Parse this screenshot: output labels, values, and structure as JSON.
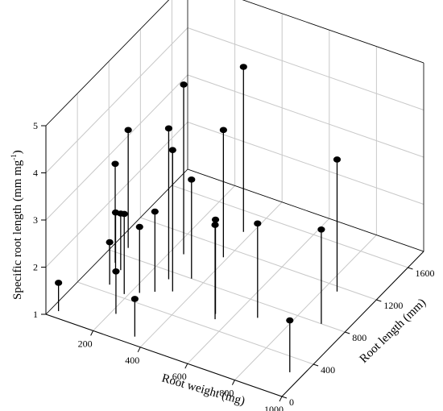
{
  "chart_data": {
    "type": "scatter",
    "subtype": "3d-scatter-with-drop-lines",
    "xlabel": "Root weight (mg)",
    "ylabel": "Root length (mm)",
    "zlabel_main": "Specific root length (mm mg",
    "zlabel_sup": "-1",
    "zlabel_close": ")",
    "xlim": [
      0,
      1000
    ],
    "ylim": [
      0,
      1800
    ],
    "zlim": [
      1,
      5
    ],
    "xticks": [
      200,
      400,
      600,
      800,
      1000
    ],
    "yticks": [
      0,
      400,
      800,
      1200,
      1600
    ],
    "zticks": [
      1,
      2,
      3,
      4,
      5
    ],
    "grid": true,
    "marker_color": "#000000",
    "points": [
      {
        "x": 60,
        "y": 700,
        "z": 3.1
      },
      {
        "x": 55,
        "y": 880,
        "z": 3.5
      },
      {
        "x": 95,
        "y": 600,
        "z": 2.3
      },
      {
        "x": 100,
        "y": 650,
        "z": 2.2
      },
      {
        "x": 110,
        "y": 480,
        "z": 1.9
      },
      {
        "x": 30,
        "y": 70,
        "z": 1.6
      },
      {
        "x": 185,
        "y": 440,
        "z": 2.7
      },
      {
        "x": 220,
        "y": 230,
        "z": 1.9
      },
      {
        "x": 230,
        "y": 500,
        "z": 2.4
      },
      {
        "x": 275,
        "y": 560,
        "z": 2.7
      },
      {
        "x": 250,
        "y": 1000,
        "z": 4.6
      },
      {
        "x": 280,
        "y": 720,
        "z": 4.2
      },
      {
        "x": 350,
        "y": 80,
        "z": 1.8
      },
      {
        "x": 350,
        "y": 800,
        "z": 3.1
      },
      {
        "x": 330,
        "y": 620,
        "z": 4.0
      },
      {
        "x": 370,
        "y": 1400,
        "z": 4.5
      },
      {
        "x": 385,
        "y": 1100,
        "z": 3.7
      },
      {
        "x": 535,
        "y": 550,
        "z": 3.0
      },
      {
        "x": 550,
        "y": 500,
        "z": 3.0
      },
      {
        "x": 680,
        "y": 650,
        "z": 3.0
      },
      {
        "x": 850,
        "y": 1150,
        "z": 3.8
      },
      {
        "x": 950,
        "y": 250,
        "z": 2.1
      },
      {
        "x": 900,
        "y": 800,
        "z": 3.0
      }
    ]
  }
}
